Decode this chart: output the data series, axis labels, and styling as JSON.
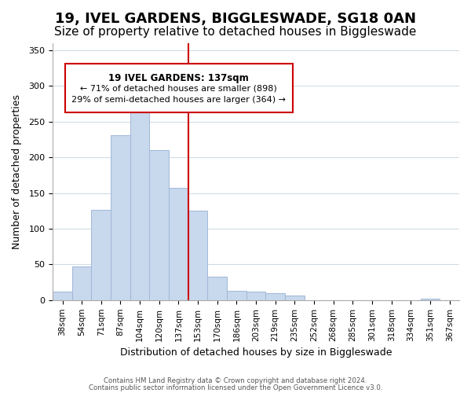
{
  "title": "19, IVEL GARDENS, BIGGLESWADE, SG18 0AN",
  "subtitle": "Size of property relative to detached houses in Biggleswade",
  "xlabel": "Distribution of detached houses by size in Biggleswade",
  "ylabel": "Number of detached properties",
  "bin_labels": [
    "38sqm",
    "54sqm",
    "71sqm",
    "87sqm",
    "104sqm",
    "120sqm",
    "137sqm",
    "153sqm",
    "170sqm",
    "186sqm",
    "203sqm",
    "219sqm",
    "235sqm",
    "252sqm",
    "268sqm",
    "285sqm",
    "301sqm",
    "318sqm",
    "334sqm",
    "351sqm",
    "367sqm"
  ],
  "bar_heights": [
    12,
    47,
    127,
    231,
    283,
    210,
    157,
    125,
    33,
    13,
    12,
    10,
    6,
    0,
    0,
    0,
    0,
    0,
    0,
    2,
    0
  ],
  "bar_color": "#c8d8ed",
  "bar_edge_color": "#a0b8d8",
  "highlight_bar_index": 6,
  "highlight_line_color": "#cc0000",
  "annotation_title": "19 IVEL GARDENS: 137sqm",
  "annotation_line1": "← 71% of detached houses are smaller (898)",
  "annotation_line2": "29% of semi-detached houses are larger (364) →",
  "annotation_box_color": "#ffffff",
  "annotation_box_edge_color": "#cc0000",
  "ylim": [
    0,
    360
  ],
  "yticks": [
    0,
    50,
    100,
    150,
    200,
    250,
    300,
    350
  ],
  "footer_line1": "Contains HM Land Registry data © Crown copyright and database right 2024.",
  "footer_line2": "Contains public sector information licensed under the Open Government Licence v3.0.",
  "bg_color": "#ffffff",
  "grid_color": "#d0dce8",
  "title_fontsize": 13,
  "subtitle_fontsize": 11
}
